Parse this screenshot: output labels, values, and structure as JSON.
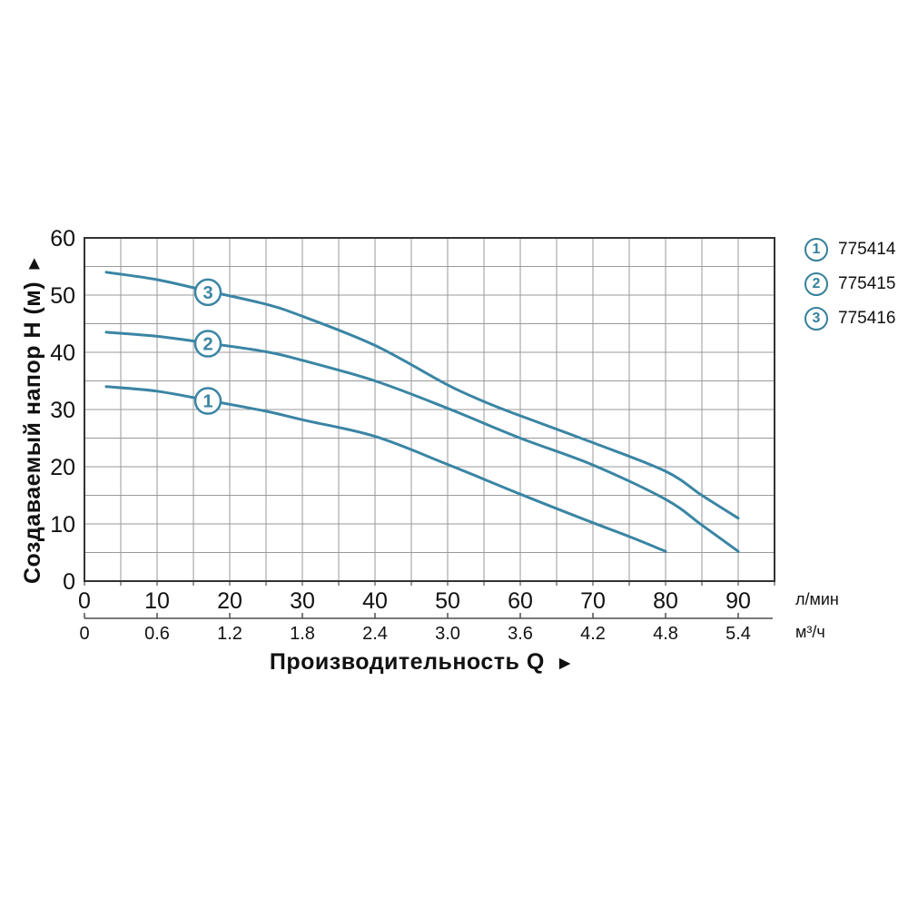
{
  "chart_data": {
    "type": "line",
    "title": "",
    "x_axis": {
      "label": "Производительность Q",
      "arrow": "►",
      "primary_unit": "л/мин",
      "primary_ticks": [
        0,
        10,
        20,
        30,
        40,
        50,
        60,
        70,
        80,
        90
      ],
      "secondary_unit": "м³/ч",
      "secondary_ticks": [
        "0",
        "0.6",
        "1.2",
        "1.8",
        "2.4",
        "3.0",
        "3.6",
        "4.2",
        "4.8",
        "5.4"
      ],
      "range": [
        0,
        95
      ],
      "grid_step": 5
    },
    "y_axis": {
      "label": "Создаваемый напор H (м)",
      "arrow": "▲",
      "ticks": [
        0,
        10,
        20,
        30,
        40,
        50,
        60
      ],
      "range": [
        0,
        60
      ],
      "grid_step": 5
    },
    "series": [
      {
        "id": "1",
        "name": "775414",
        "marker_at": [
          17,
          31.5
        ],
        "points": [
          [
            3,
            34
          ],
          [
            10,
            33.2
          ],
          [
            17,
            31.6
          ],
          [
            25,
            29.7
          ],
          [
            30,
            28.2
          ],
          [
            40,
            25.3
          ],
          [
            50,
            20.4
          ],
          [
            60,
            15.2
          ],
          [
            70,
            10.2
          ],
          [
            75,
            7.8
          ],
          [
            80,
            5.2
          ]
        ]
      },
      {
        "id": "2",
        "name": "775415",
        "marker_at": [
          17,
          41.5
        ],
        "points": [
          [
            3,
            43.5
          ],
          [
            10,
            42.8
          ],
          [
            17,
            41.6
          ],
          [
            25,
            40.1
          ],
          [
            30,
            38.6
          ],
          [
            40,
            35
          ],
          [
            50,
            30.2
          ],
          [
            60,
            25
          ],
          [
            70,
            20.3
          ],
          [
            80,
            14.3
          ],
          [
            85,
            9.8
          ],
          [
            90,
            5.2
          ]
        ]
      },
      {
        "id": "3",
        "name": "775416",
        "marker_at": [
          17,
          50.5
        ],
        "points": [
          [
            3,
            54
          ],
          [
            10,
            52.7
          ],
          [
            17,
            50.7
          ],
          [
            25,
            48.4
          ],
          [
            30,
            46.3
          ],
          [
            40,
            41.2
          ],
          [
            50,
            34.3
          ],
          [
            55,
            31.4
          ],
          [
            60,
            28.9
          ],
          [
            70,
            24.2
          ],
          [
            80,
            19.2
          ],
          [
            85,
            15
          ],
          [
            90,
            11
          ]
        ]
      }
    ],
    "legend": {
      "position": "top-right",
      "items": [
        {
          "marker": "1",
          "label": "775414"
        },
        {
          "marker": "2",
          "label": "775415"
        },
        {
          "marker": "3",
          "label": "775416"
        }
      ]
    },
    "colors": {
      "curve": "#3a85a4",
      "legend_circle": "#35809b",
      "grid": "#999999",
      "border": "#333333",
      "secondary_axis": "#4d4d4d",
      "text": "#111111"
    },
    "grid": true,
    "legend_position": "top-right"
  }
}
